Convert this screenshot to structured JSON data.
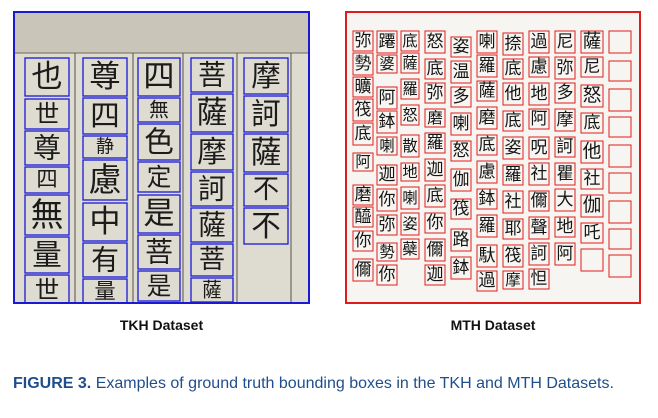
{
  "panels": [
    {
      "label": "TKH Dataset",
      "box_color": "#1a1ad6",
      "glyphs": [
        "也",
        "世",
        "尊",
        "四",
        "無",
        "量",
        "世",
        "尊",
        "四",
        "静",
        "慮",
        "中",
        "有",
        "量",
        "四",
        "無",
        "色",
        "定",
        "是",
        "菩",
        "是",
        "菩",
        "薩",
        "摩",
        "訶",
        "薩",
        "菩",
        "薩",
        "摩",
        "訶",
        "薩",
        "不",
        "不"
      ]
    },
    {
      "label": "MTH Dataset",
      "box_color": "#e01b1b",
      "glyphs": [
        "弥",
        "勢",
        "曠",
        "筏",
        "底",
        "阿",
        "磨",
        "醯",
        "你",
        "儞",
        "蹮",
        "婆",
        "阿",
        "鉢",
        "喇",
        "迦",
        "你",
        "弥",
        "勢",
        "你",
        "底",
        "薩",
        "羅",
        "怒",
        "散",
        "地",
        "喇",
        "姿",
        "蘗",
        "怒",
        "底",
        "弥",
        "磨",
        "羅",
        "迦",
        "底",
        "你",
        "儞",
        "迦",
        "姿",
        "温",
        "多",
        "喇",
        "怒",
        "伽",
        "筏",
        "路",
        "鉢",
        "喇",
        "羅",
        "薩",
        "磨",
        "底",
        "慮",
        "鉢",
        "羅",
        "馱",
        "過",
        "捺",
        "底",
        "他",
        "底",
        "姿",
        "羅",
        "社",
        "耶",
        "筏",
        "摩",
        "過",
        "慮",
        "地",
        "阿",
        "呪",
        "社",
        "儞",
        "聲",
        "訶",
        "怛",
        "尼",
        "弥",
        "多",
        "摩",
        "訶",
        "瞿",
        "大",
        "地",
        "阿",
        "薩",
        "尼",
        "怒",
        "底",
        "他",
        "社",
        "伽",
        "吒"
      ]
    }
  ],
  "caption": {
    "label": "FIGURE 3.",
    "text": "Examples of ground truth bounding boxes in the TKH and MTH Datasets."
  }
}
